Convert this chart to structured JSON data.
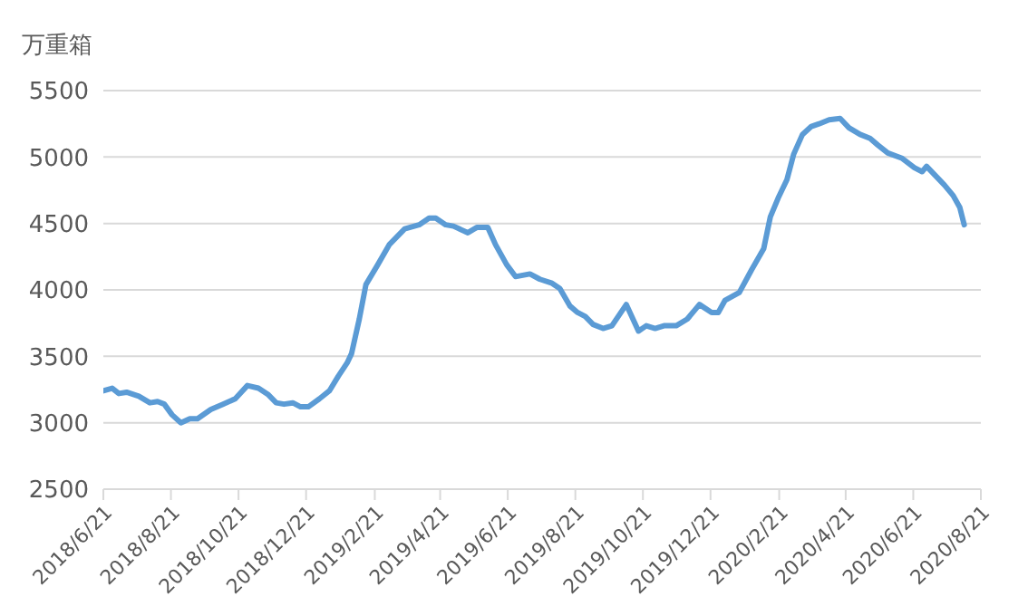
{
  "chart_data": {
    "type": "line",
    "ylabel": "万重箱",
    "x": [
      "2018-06-21",
      "2018-06-29",
      "2018-07-05",
      "2018-07-12",
      "2018-07-23",
      "2018-08-02",
      "2018-08-09",
      "2018-08-15",
      "2018-08-22",
      "2018-08-30",
      "2018-09-07",
      "2018-09-14",
      "2018-09-26",
      "2018-10-07",
      "2018-10-18",
      "2018-10-29",
      "2018-11-08",
      "2018-11-17",
      "2018-11-24",
      "2018-12-01",
      "2018-12-09",
      "2018-12-16",
      "2018-12-23",
      "2019-01-02",
      "2019-01-11",
      "2019-01-19",
      "2019-01-27",
      "2019-01-31",
      "2019-02-07",
      "2019-02-13",
      "2019-02-23",
      "2019-03-06",
      "2019-03-20",
      "2019-04-02",
      "2019-04-11",
      "2019-04-17",
      "2019-04-26",
      "2019-05-03",
      "2019-05-16",
      "2019-05-24",
      "2019-06-03",
      "2019-06-10",
      "2019-06-20",
      "2019-06-28",
      "2019-07-11",
      "2019-07-20",
      "2019-07-31",
      "2019-08-07",
      "2019-08-16",
      "2019-08-23",
      "2019-08-30",
      "2019-09-06",
      "2019-09-15",
      "2019-09-23",
      "2019-10-06",
      "2019-10-17",
      "2019-10-24",
      "2019-11-01",
      "2019-11-09",
      "2019-11-20",
      "2019-11-30",
      "2019-12-11",
      "2019-12-22",
      "2019-12-28",
      "2020-01-03",
      "2020-01-16",
      "2020-01-27",
      "2020-02-07",
      "2020-02-13",
      "2020-02-20",
      "2020-02-28",
      "2020-03-05",
      "2020-03-13",
      "2020-03-21",
      "2020-03-28",
      "2020-04-06",
      "2020-04-16",
      "2020-04-24",
      "2020-05-04",
      "2020-05-13",
      "2020-05-20",
      "2020-05-29",
      "2020-06-11",
      "2020-06-22",
      "2020-06-29",
      "2020-07-03",
      "2020-07-11",
      "2020-07-19",
      "2020-07-27",
      "2020-08-02",
      "2020-08-06"
    ],
    "series": [
      {
        "color": "#5b9bd5",
        "values": [
          3240,
          3260,
          3220,
          3230,
          3200,
          3150,
          3160,
          3140,
          3060,
          3000,
          3030,
          3030,
          3100,
          3140,
          3180,
          3280,
          3260,
          3210,
          3150,
          3140,
          3150,
          3120,
          3120,
          3180,
          3240,
          3350,
          3450,
          3520,
          3780,
          4040,
          4180,
          4340,
          4460,
          4490,
          4540,
          4540,
          4490,
          4480,
          4430,
          4470,
          4470,
          4340,
          4190,
          4100,
          4120,
          4080,
          4050,
          4010,
          3880,
          3830,
          3800,
          3740,
          3710,
          3730,
          3890,
          3690,
          3730,
          3710,
          3730,
          3730,
          3780,
          3890,
          3830,
          3830,
          3920,
          3980,
          4150,
          4310,
          4550,
          4690,
          4830,
          5020,
          5170,
          5230,
          5250,
          5280,
          5290,
          5220,
          5170,
          5140,
          5090,
          5030,
          4990,
          4920,
          4890,
          4930,
          4860,
          4790,
          4710,
          4620,
          4490
        ]
      }
    ],
    "xlim": [
      "2018-06-21",
      "2020-08-21"
    ],
    "xticks": [
      {
        "value": "2018-06-21",
        "label": "2018/6/21"
      },
      {
        "value": "2018-08-21",
        "label": "2018/8/21"
      },
      {
        "value": "2018-10-21",
        "label": "2018/10/21"
      },
      {
        "value": "2018-12-21",
        "label": "2018/12/21"
      },
      {
        "value": "2019-02-21",
        "label": "2019/2/21"
      },
      {
        "value": "2019-04-21",
        "label": "2019/4/21"
      },
      {
        "value": "2019-06-21",
        "label": "2019/6/21"
      },
      {
        "value": "2019-08-21",
        "label": "2019/8/21"
      },
      {
        "value": "2019-10-21",
        "label": "2019/10/21"
      },
      {
        "value": "2019-12-21",
        "label": "2019/12/21"
      },
      {
        "value": "2020-02-21",
        "label": "2020/2/21"
      },
      {
        "value": "2020-04-21",
        "label": "2020/4/21"
      },
      {
        "value": "2020-06-21",
        "label": "2020/6/21"
      },
      {
        "value": "2020-08-21",
        "label": "2020/8/21"
      }
    ],
    "ylim": [
      2500,
      5500
    ],
    "yticks": [
      2500,
      3000,
      3500,
      4000,
      4500,
      5000,
      5500
    ],
    "grid": "y",
    "legend": false,
    "marker": "none",
    "line_style": "solid"
  }
}
